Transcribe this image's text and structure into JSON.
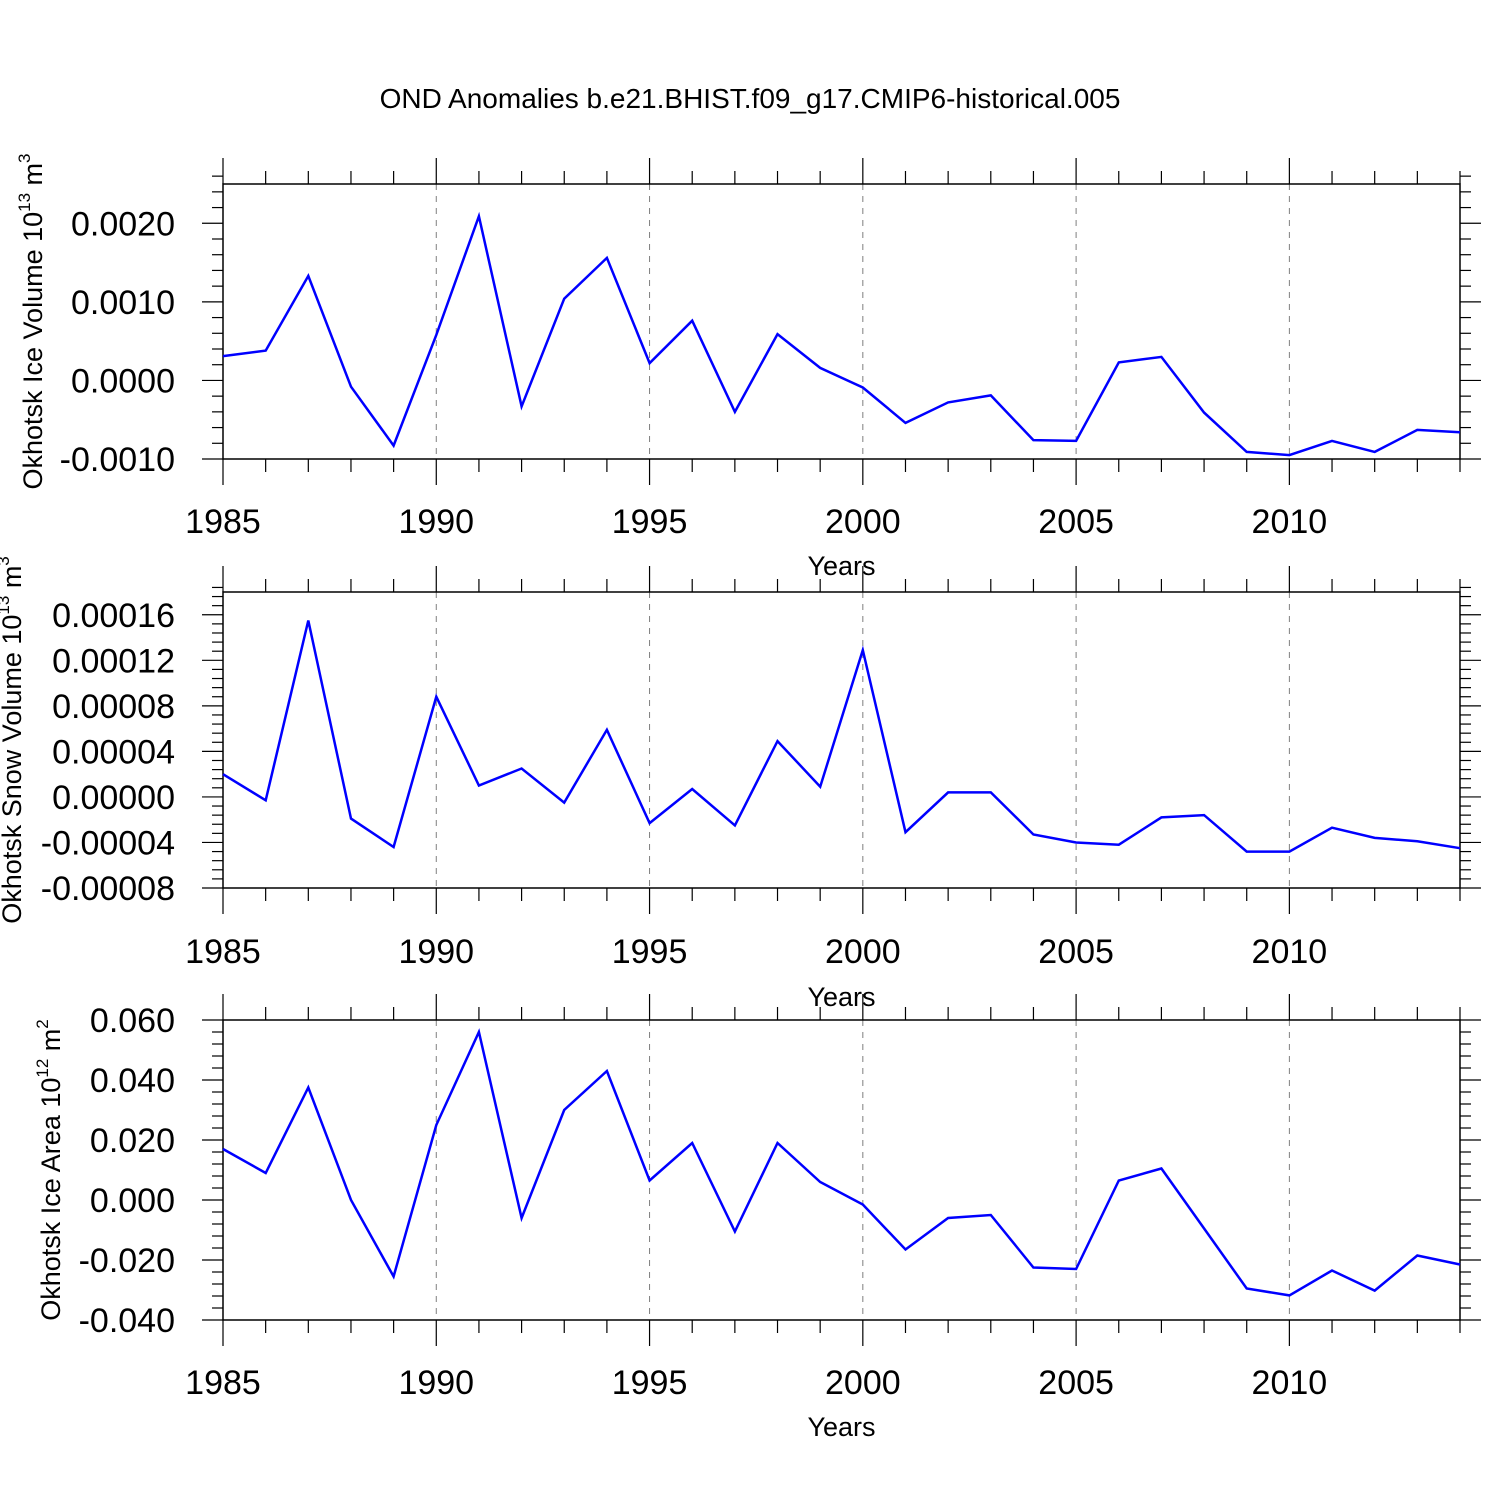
{
  "title": "OND Anomalies b.e21.BHIST.f09_g17.CMIP6-historical.005",
  "colors": {
    "series": "#0000ff",
    "axes": "#000000",
    "grid": "#7f7f7f"
  },
  "chart_data": [
    {
      "type": "line",
      "ylabel_main": "Okhotsk Ice Volume 10",
      "ylabel_exp": "13",
      "ylabel_unit": " m",
      "ylabel_unit_exp": "3",
      "xlabel": "Years",
      "xlim": [
        1985,
        2014
      ],
      "ylim": [
        -0.001,
        0.0025
      ],
      "yticks": [
        -0.001,
        0.0,
        0.001,
        0.002
      ],
      "ytick_labels": [
        "-0.0010",
        "0.0000",
        "0.0010",
        "0.0020"
      ],
      "xticks": [
        1985,
        1990,
        1995,
        2000,
        2005,
        2010
      ],
      "xtick_labels": [
        "1985",
        "1990",
        "1995",
        "2000",
        "2005",
        "2010"
      ],
      "x": [
        1985,
        1986,
        1987,
        1988,
        1989,
        1990,
        1991,
        1992,
        1993,
        1994,
        1995,
        1996,
        1997,
        1998,
        1999,
        2000,
        2001,
        2002,
        2003,
        2004,
        2005,
        2006,
        2007,
        2008,
        2009,
        2010,
        2011,
        2012,
        2013,
        2014
      ],
      "values": [
        0.00031,
        0.00038,
        0.00133,
        -8e-05,
        -0.00083,
        0.00058,
        0.00209,
        -0.00033,
        0.00104,
        0.00156,
        0.00022,
        0.00076,
        -0.0004,
        0.00059,
        0.00016,
        -9e-05,
        -0.00054,
        -0.00028,
        -0.00019,
        -0.00076,
        -0.00077,
        0.00023,
        0.0003,
        -0.00041,
        -0.00091,
        -0.00095,
        -0.00077,
        -0.00091,
        -0.00063,
        -0.00066
      ]
    },
    {
      "type": "line",
      "ylabel_main": "Okhotsk Snow Volume 10",
      "ylabel_exp": "13",
      "ylabel_unit": " m",
      "ylabel_unit_exp": "3",
      "xlabel": "Years",
      "xlim": [
        1985,
        2014
      ],
      "ylim": [
        -8e-05,
        0.00018
      ],
      "yticks": [
        -8e-05,
        -4e-05,
        0.0,
        4e-05,
        8e-05,
        0.00012,
        0.00016
      ],
      "ytick_labels": [
        "-0.00008",
        "-0.00004",
        "0.00000",
        "0.00004",
        "0.00008",
        "0.00012",
        "0.00016"
      ],
      "xticks": [
        1985,
        1990,
        1995,
        2000,
        2005,
        2010
      ],
      "xtick_labels": [
        "1985",
        "1990",
        "1995",
        "2000",
        "2005",
        "2010"
      ],
      "x": [
        1985,
        1986,
        1987,
        1988,
        1989,
        1990,
        1991,
        1992,
        1993,
        1994,
        1995,
        1996,
        1997,
        1998,
        1999,
        2000,
        2001,
        2002,
        2003,
        2004,
        2005,
        2006,
        2007,
        2008,
        2009,
        2010,
        2011,
        2012,
        2013,
        2014
      ],
      "values": [
        2e-05,
        -3e-06,
        0.000155,
        -1.9e-05,
        -4.4e-05,
        8.8e-05,
        1e-05,
        2.5e-05,
        -5e-06,
        5.9e-05,
        -2.3e-05,
        7e-06,
        -2.5e-05,
        4.9e-05,
        9e-06,
        0.000129,
        -3.1e-05,
        4e-06,
        4e-06,
        -3.3e-05,
        -4e-05,
        -4.2e-05,
        -1.8e-05,
        -1.6e-05,
        -4.8e-05,
        -4.8e-05,
        -2.7e-05,
        -3.6e-05,
        -3.9e-05,
        -4.5e-05
      ]
    },
    {
      "type": "line",
      "ylabel_main": "Okhotsk Ice Area 10",
      "ylabel_exp": "12",
      "ylabel_unit": " m",
      "ylabel_unit_exp": "2",
      "xlabel": "Years",
      "xlim": [
        1985,
        2014
      ],
      "ylim": [
        -0.04,
        0.06
      ],
      "yticks": [
        -0.04,
        -0.02,
        0.0,
        0.02,
        0.04,
        0.06
      ],
      "ytick_labels": [
        "-0.040",
        "-0.020",
        "0.000",
        "0.020",
        "0.040",
        "0.060"
      ],
      "xticks": [
        1985,
        1990,
        1995,
        2000,
        2005,
        2010
      ],
      "xtick_labels": [
        "1985",
        "1990",
        "1995",
        "2000",
        "2005",
        "2010"
      ],
      "x": [
        1985,
        1986,
        1987,
        1988,
        1989,
        1990,
        1991,
        1992,
        1993,
        1994,
        1995,
        1996,
        1997,
        1998,
        1999,
        2000,
        2001,
        2002,
        2003,
        2004,
        2005,
        2006,
        2007,
        2008,
        2009,
        2010,
        2011,
        2012,
        2013,
        2014
      ],
      "values": [
        0.017,
        0.009,
        0.0375,
        0.0,
        -0.0255,
        0.025,
        0.056,
        -0.006,
        0.03,
        0.043,
        0.0065,
        0.019,
        -0.0105,
        0.019,
        0.006,
        -0.0015,
        -0.0165,
        -0.006,
        -0.005,
        -0.0225,
        -0.023,
        0.0065,
        0.0105,
        -0.0095,
        -0.0295,
        -0.0318,
        -0.0235,
        -0.0302,
        -0.0185,
        -0.0215
      ]
    }
  ]
}
